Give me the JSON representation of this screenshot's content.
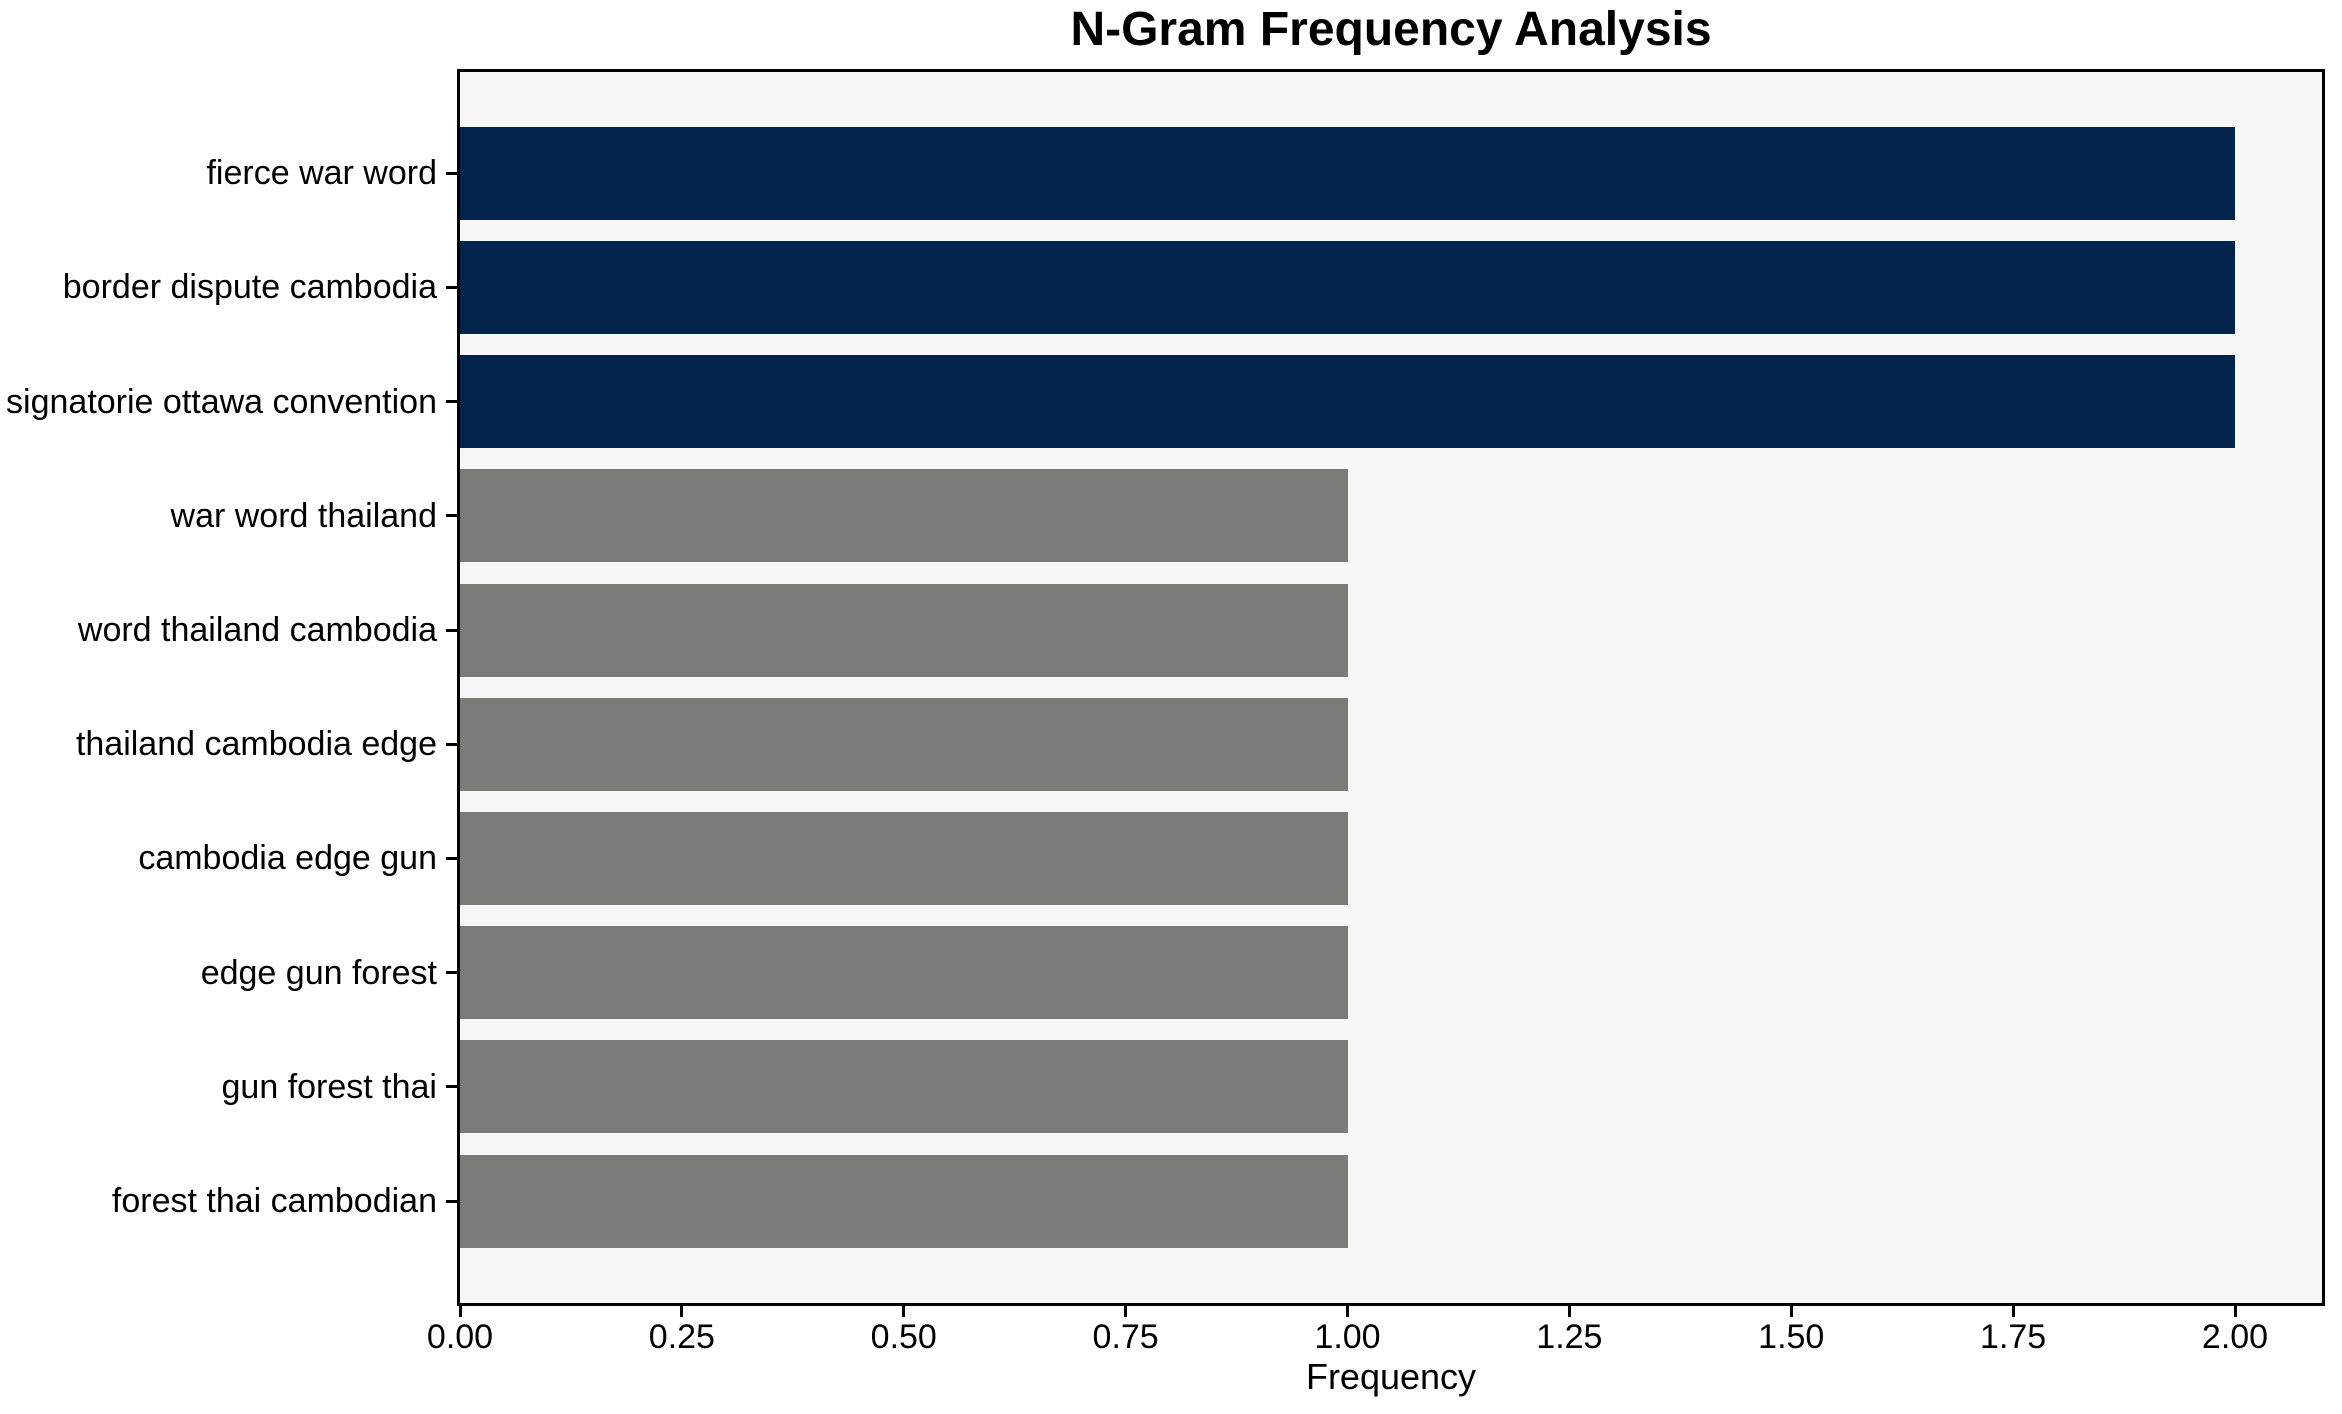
{
  "chart_data": {
    "type": "bar",
    "orientation": "horizontal",
    "title": "N-Gram Frequency Analysis",
    "xlabel": "Frequency",
    "ylabel": "",
    "categories": [
      "fierce war word",
      "border dispute cambodia",
      "signatorie ottawa convention",
      "war word thailand",
      "word thailand cambodia",
      "thailand cambodia edge",
      "cambodia edge gun",
      "edge gun forest",
      "gun forest thai",
      "forest thai cambodian"
    ],
    "values": [
      2,
      2,
      2,
      1,
      1,
      1,
      1,
      1,
      1,
      1
    ],
    "bar_colors": [
      "#02234c",
      "#02234c",
      "#02234c",
      "#7b7b78",
      "#7b7b78",
      "#7b7b78",
      "#7b7b78",
      "#7b7b78",
      "#7b7b78",
      "#7b7b78"
    ],
    "colors": {
      "highlight": "#02234c",
      "default": "#7b7b78",
      "plot_background": "#f7f7f7",
      "figure_background": "#ffffff",
      "spine": "#000000",
      "text": "#000000"
    },
    "xlim": [
      0,
      2.1
    ],
    "xticks": [
      "0.00",
      "0.25",
      "0.50",
      "0.75",
      "1.00",
      "1.25",
      "1.50",
      "1.75",
      "2.00"
    ],
    "xtick_values": [
      0,
      0.25,
      0.5,
      0.75,
      1.0,
      1.25,
      1.5,
      1.75,
      2.0
    ],
    "grid": false,
    "legend": null
  }
}
